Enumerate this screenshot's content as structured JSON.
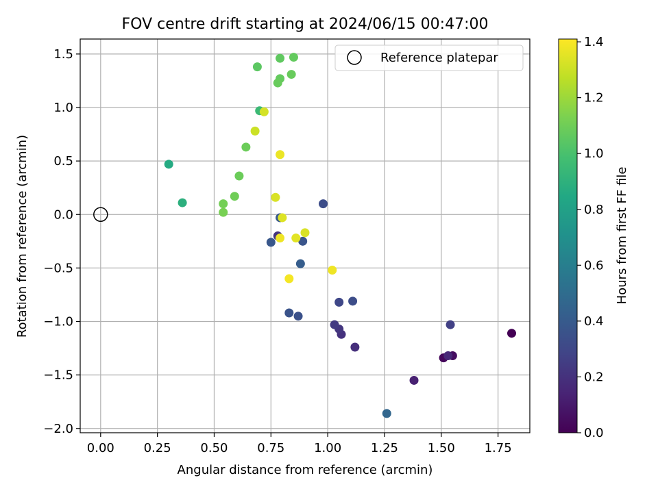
{
  "chart_data": {
    "type": "scatter",
    "title": "FOV centre drift starting at 2024/06/15 00:47:00",
    "xlabel": "Angular distance from reference (arcmin)",
    "ylabel": "Rotation from reference (arcmin)",
    "xlim": [
      -0.09,
      1.89
    ],
    "ylim": [
      -2.04,
      1.64
    ],
    "x_ticks": [
      0.0,
      0.25,
      0.5,
      0.75,
      1.0,
      1.25,
      1.5,
      1.75
    ],
    "x_tick_labels": [
      "0.00",
      "0.25",
      "0.50",
      "0.75",
      "1.00",
      "1.25",
      "1.50",
      "1.75"
    ],
    "y_ticks": [
      1.5,
      1.0,
      0.5,
      0.0,
      -0.5,
      -1.0,
      -1.5,
      -2.0
    ],
    "y_tick_labels": [
      "1.5",
      "1.0",
      "0.5",
      "0.0",
      "−0.5",
      "−1.0",
      "−1.5",
      "−2.0"
    ],
    "grid": true,
    "legend": {
      "position": "top-right",
      "entries": [
        "Reference platepar"
      ]
    },
    "reference_point": {
      "x": 0.0,
      "y": 0.0,
      "marker": "open-circle"
    },
    "colorbar": {
      "label": "Hours from first FF file",
      "colormap": "viridis",
      "range": [
        0.0,
        1.41
      ],
      "ticks": [
        0.0,
        0.2,
        0.4,
        0.6,
        0.8,
        1.0,
        1.2,
        1.4
      ],
      "tick_labels": [
        "0.0",
        "0.2",
        "0.4",
        "0.6",
        "0.8",
        "1.0",
        "1.2",
        "1.4"
      ]
    },
    "points": [
      {
        "x": 1.81,
        "y": -1.11,
        "c": 0.0
      },
      {
        "x": 1.51,
        "y": -1.34,
        "c": 0.03
      },
      {
        "x": 1.55,
        "y": -1.32,
        "c": 0.05
      },
      {
        "x": 1.38,
        "y": -1.55,
        "c": 0.13
      },
      {
        "x": 1.53,
        "y": -1.32,
        "c": 0.16
      },
      {
        "x": 1.12,
        "y": -1.24,
        "c": 0.19
      },
      {
        "x": 1.06,
        "y": -1.12,
        "c": 0.2
      },
      {
        "x": 1.05,
        "y": -1.07,
        "c": 0.22
      },
      {
        "x": 1.03,
        "y": -1.03,
        "c": 0.24
      },
      {
        "x": 0.78,
        "y": -0.2,
        "c": 0.21
      },
      {
        "x": 1.54,
        "y": -1.03,
        "c": 0.27
      },
      {
        "x": 1.05,
        "y": -0.82,
        "c": 0.3
      },
      {
        "x": 1.11,
        "y": -0.81,
        "c": 0.33
      },
      {
        "x": 0.98,
        "y": 0.1,
        "c": 0.33
      },
      {
        "x": 0.87,
        "y": -0.95,
        "c": 0.35
      },
      {
        "x": 0.83,
        "y": -0.92,
        "c": 0.36
      },
      {
        "x": 0.89,
        "y": -0.25,
        "c": 0.37
      },
      {
        "x": 0.75,
        "y": -0.26,
        "c": 0.38
      },
      {
        "x": 0.79,
        "y": -0.03,
        "c": 0.39
      },
      {
        "x": 0.88,
        "y": -0.46,
        "c": 0.41
      },
      {
        "x": 1.26,
        "y": -1.86,
        "c": 0.46
      },
      {
        "x": 0.3,
        "y": 0.47,
        "c": 0.86
      },
      {
        "x": 0.36,
        "y": 0.11,
        "c": 0.89
      },
      {
        "x": 0.7,
        "y": 0.97,
        "c": 0.95
      },
      {
        "x": 0.69,
        "y": 1.38,
        "c": 1.05
      },
      {
        "x": 0.79,
        "y": 1.46,
        "c": 1.06
      },
      {
        "x": 0.85,
        "y": 1.47,
        "c": 1.07
      },
      {
        "x": 0.79,
        "y": 1.27,
        "c": 1.07
      },
      {
        "x": 0.84,
        "y": 1.31,
        "c": 1.08
      },
      {
        "x": 0.78,
        "y": 1.23,
        "c": 1.08
      },
      {
        "x": 0.64,
        "y": 0.63,
        "c": 1.09
      },
      {
        "x": 0.61,
        "y": 0.36,
        "c": 1.09
      },
      {
        "x": 0.59,
        "y": 0.17,
        "c": 1.1
      },
      {
        "x": 0.54,
        "y": 0.1,
        "c": 1.11
      },
      {
        "x": 0.54,
        "y": 0.02,
        "c": 1.12
      },
      {
        "x": 0.68,
        "y": 0.78,
        "c": 1.3
      },
      {
        "x": 0.72,
        "y": 0.96,
        "c": 1.32
      },
      {
        "x": 0.77,
        "y": 0.16,
        "c": 1.33
      },
      {
        "x": 0.9,
        "y": -0.17,
        "c": 1.33
      },
      {
        "x": 0.8,
        "y": -0.03,
        "c": 1.34
      },
      {
        "x": 0.86,
        "y": -0.22,
        "c": 1.35
      },
      {
        "x": 0.79,
        "y": 0.56,
        "c": 1.37
      },
      {
        "x": 0.79,
        "y": -0.22,
        "c": 1.38
      },
      {
        "x": 1.02,
        "y": -0.52,
        "c": 1.38
      },
      {
        "x": 0.83,
        "y": -0.6,
        "c": 1.39
      }
    ]
  }
}
